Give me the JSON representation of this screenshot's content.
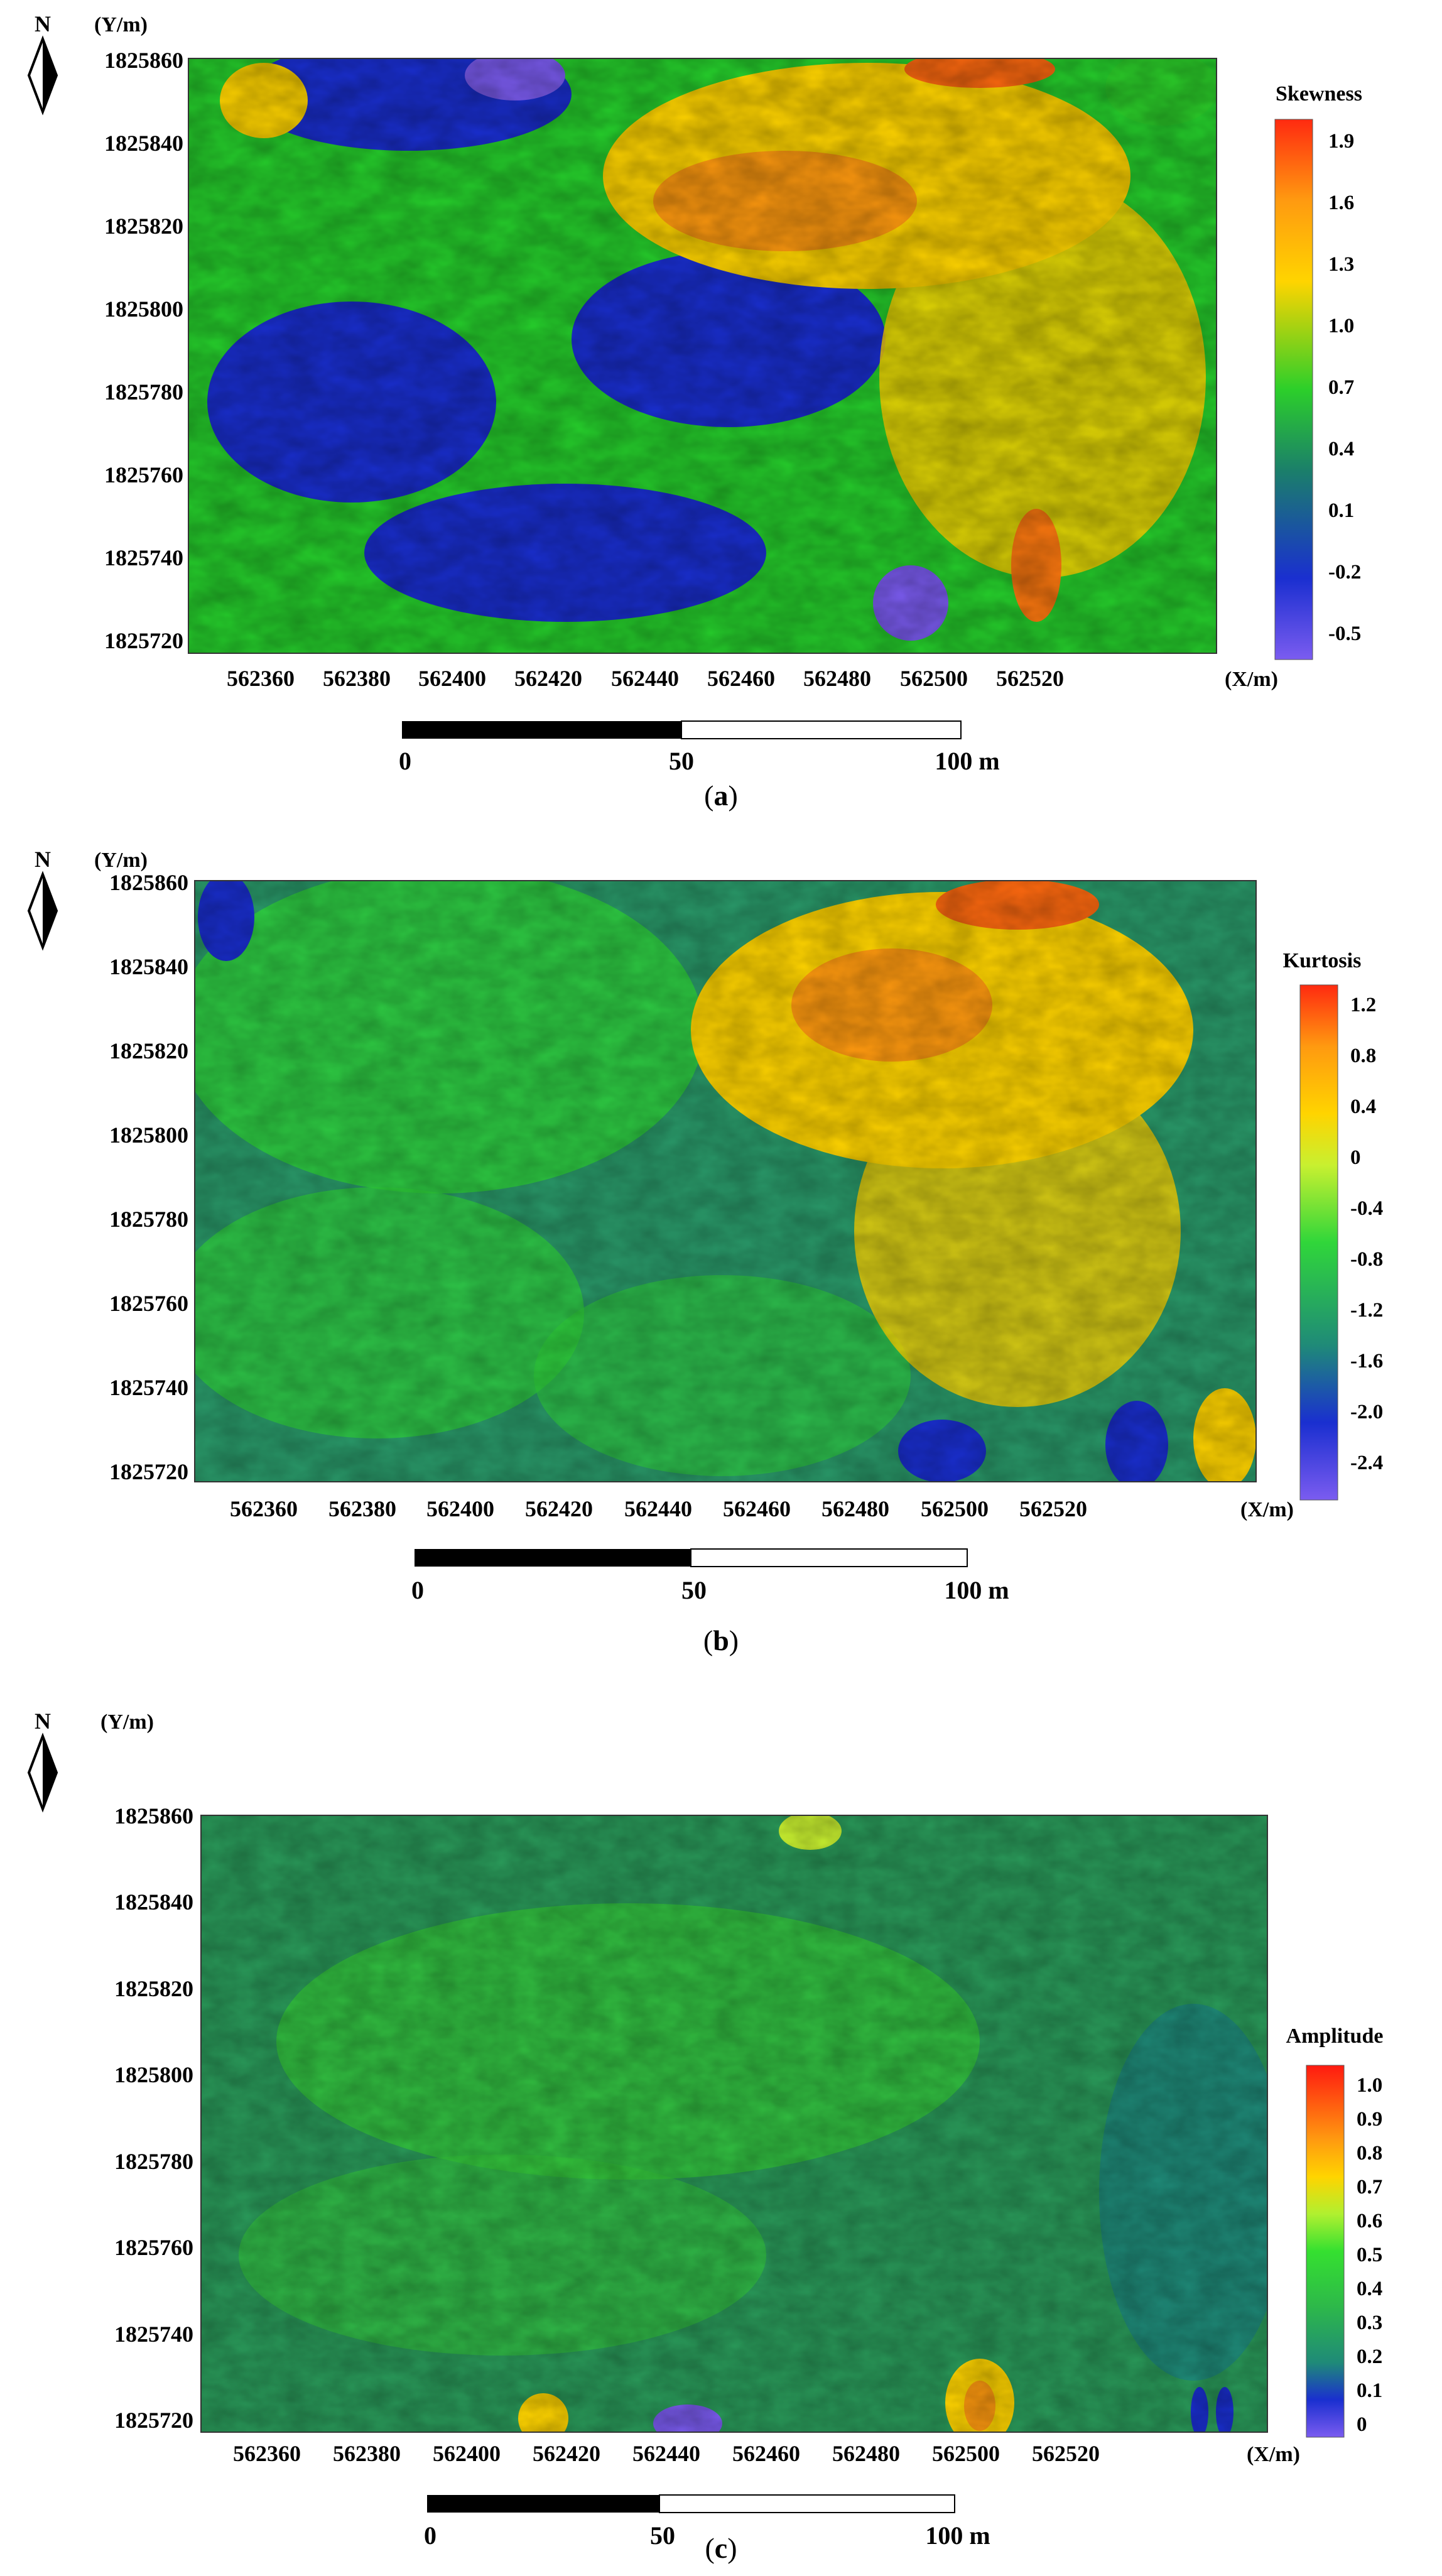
{
  "north_label": "N",
  "y_unit": "(Y/m)",
  "x_unit": "(X/m)",
  "x_ticks": [
    "562360",
    "562380",
    "562400",
    "562420",
    "562440",
    "562460",
    "562480",
    "562500",
    "562520"
  ],
  "y_ticks": [
    "1825860",
    "1825840",
    "1825820",
    "1825800",
    "1825780",
    "1825760",
    "1825740",
    "1825720"
  ],
  "scale_bar": {
    "labels": [
      "0",
      "50",
      "100 m"
    ]
  },
  "panels": [
    {
      "caption_open": "(",
      "caption_letter": "a",
      "caption_close": ")",
      "colorbar_title": "Skewness",
      "colorbar_labels": [
        "1.9",
        "1.6",
        "1.3",
        "1.0",
        "0.7",
        "0.4",
        "0.1",
        "-0.2",
        "-0.5"
      ],
      "colors": {
        "low": "#7b5cf0",
        "mid_low": "#1a2fd0",
        "mid": "#2ccf2a",
        "mid_high": "#ffd400",
        "high": "#ff2a10"
      }
    },
    {
      "caption_open": "(",
      "caption_letter": "b",
      "caption_close": ")",
      "colorbar_title": "Kurtosis",
      "colorbar_labels": [
        "1.2",
        "0.8",
        "0.4",
        "0",
        "-0.4",
        "-0.8",
        "-1.2",
        "-1.6",
        "-2.0",
        "-2.4"
      ],
      "colors": {
        "low": "#7b5cf0",
        "mid_low": "#1f8a78",
        "mid": "#30d63a",
        "mid_high": "#ffd400",
        "high": "#ff2a10"
      }
    },
    {
      "caption_open": "(",
      "caption_letter": "c",
      "caption_close": ")",
      "colorbar_title": "Amplitude",
      "colorbar_labels": [
        "1.0",
        "0.9",
        "0.8",
        "0.7",
        "0.6",
        "0.5",
        "0.4",
        "0.3",
        "0.2",
        "0.1",
        "0"
      ],
      "colors": {
        "low": "#7b5cf0",
        "mid_low": "#1f8a78",
        "mid": "#35c93a",
        "mid_high": "#ffd400",
        "high": "#ff2a10"
      }
    }
  ]
}
